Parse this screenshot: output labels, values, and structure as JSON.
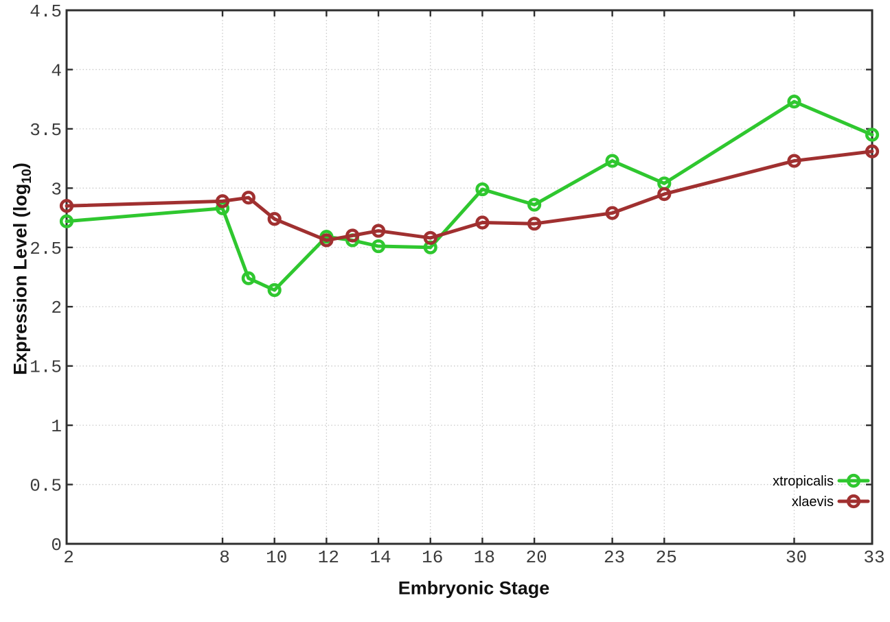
{
  "chart_data": {
    "type": "line",
    "title": "",
    "xlabel": "Embryonic Stage",
    "ylabel": "Expression Level (log10)",
    "ylabel_parts": {
      "prefix": "Expression Level (log",
      "sub": "10",
      "suffix": ")"
    },
    "xlim": [
      2,
      33
    ],
    "ylim": [
      0,
      4.5
    ],
    "grid": true,
    "legend_position": "bottom-right",
    "x": [
      2,
      8,
      9,
      10,
      12,
      13,
      14,
      16,
      18,
      20,
      23,
      25,
      30,
      33
    ],
    "xticks": [
      2,
      8,
      10,
      12,
      14,
      16,
      18,
      20,
      23,
      25,
      30,
      33
    ],
    "xtick_labels": [
      "2",
      "8",
      "10",
      "12",
      "14",
      "16",
      "18",
      "20",
      "23",
      "25",
      "30",
      "33"
    ],
    "yticks": [
      0,
      0.5,
      1,
      1.5,
      2,
      2.5,
      3,
      3.5,
      4,
      4.5
    ],
    "ytick_labels": [
      "0",
      "0.5",
      "1",
      "1.5",
      "2",
      "2.5",
      "3",
      "3.5",
      "4",
      "4.5"
    ],
    "series": [
      {
        "name": "xtropicalis",
        "color": "#2fc72f",
        "marker": "open-circle",
        "values": [
          2.72,
          2.83,
          2.24,
          2.14,
          2.59,
          2.56,
          2.51,
          2.5,
          2.99,
          2.86,
          3.23,
          3.04,
          3.73,
          3.45
        ]
      },
      {
        "name": "xlaevis",
        "color": "#a03030",
        "marker": "open-circle",
        "values": [
          2.85,
          2.89,
          2.92,
          2.74,
          2.56,
          2.6,
          2.64,
          2.58,
          2.71,
          2.7,
          2.79,
          2.95,
          3.23,
          3.31
        ]
      }
    ]
  },
  "style_colors": {
    "border": "#2e2e2e",
    "grid": "#c8c8c8",
    "tick_text": "#3c3c3c",
    "background": "#ffffff"
  }
}
